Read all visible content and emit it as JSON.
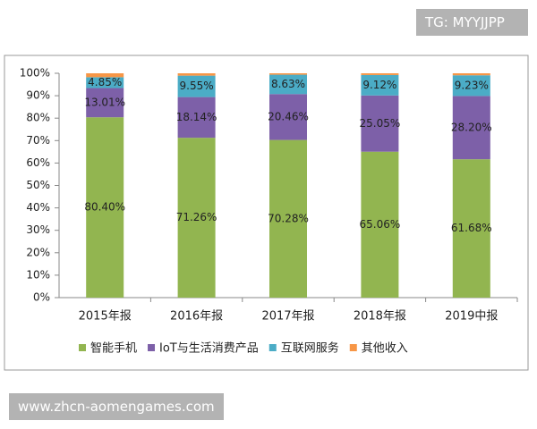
{
  "watermark_top": "TG: MYYJJPP",
  "watermark_bottom": "www.zhcn-aomengames.com",
  "chart_data": {
    "type": "stacked_bar",
    "categories": [
      "2015年报",
      "2016年报",
      "2017年报",
      "2018年报",
      "2019中报"
    ],
    "series": [
      {
        "name": "智能手机",
        "color": "#92b550",
        "values": [
          80.4,
          71.26,
          70.28,
          65.06,
          61.68
        ],
        "value_labels": [
          "80.40%",
          "71.26%",
          "70.28%",
          "65.06%",
          "61.68%"
        ]
      },
      {
        "name": "IoT与生活消费产品",
        "color": "#7d60a8",
        "values": [
          13.01,
          18.14,
          20.46,
          25.05,
          28.2
        ],
        "value_labels": [
          "13.01%",
          "18.14%",
          "20.46%",
          "25.05%",
          "28.20%"
        ]
      },
      {
        "name": "互联网服务",
        "color": "#4bacc6",
        "values": [
          4.85,
          9.55,
          8.63,
          9.12,
          9.23
        ],
        "value_labels": [
          "4.85%",
          "9.55%",
          "8.63%",
          "9.12%",
          "9.23%"
        ]
      },
      {
        "name": "其他收入",
        "color": "#f79646",
        "values": [
          1.74,
          1.05,
          0.63,
          0.77,
          0.89
        ]
      }
    ],
    "ylim": [
      0,
      100
    ],
    "yticks": [
      {
        "value": 0,
        "label": "0%"
      },
      {
        "value": 10,
        "label": "10%"
      },
      {
        "value": 20,
        "label": "20%"
      },
      {
        "value": 30,
        "label": "30%"
      },
      {
        "value": 40,
        "label": "40%"
      },
      {
        "value": 50,
        "label": "50%"
      },
      {
        "value": 60,
        "label": "60%"
      },
      {
        "value": 70,
        "label": "70%"
      },
      {
        "value": 80,
        "label": "80%"
      },
      {
        "value": 90,
        "label": "90%"
      },
      {
        "value": 100,
        "label": "100%"
      }
    ],
    "grid": false
  }
}
